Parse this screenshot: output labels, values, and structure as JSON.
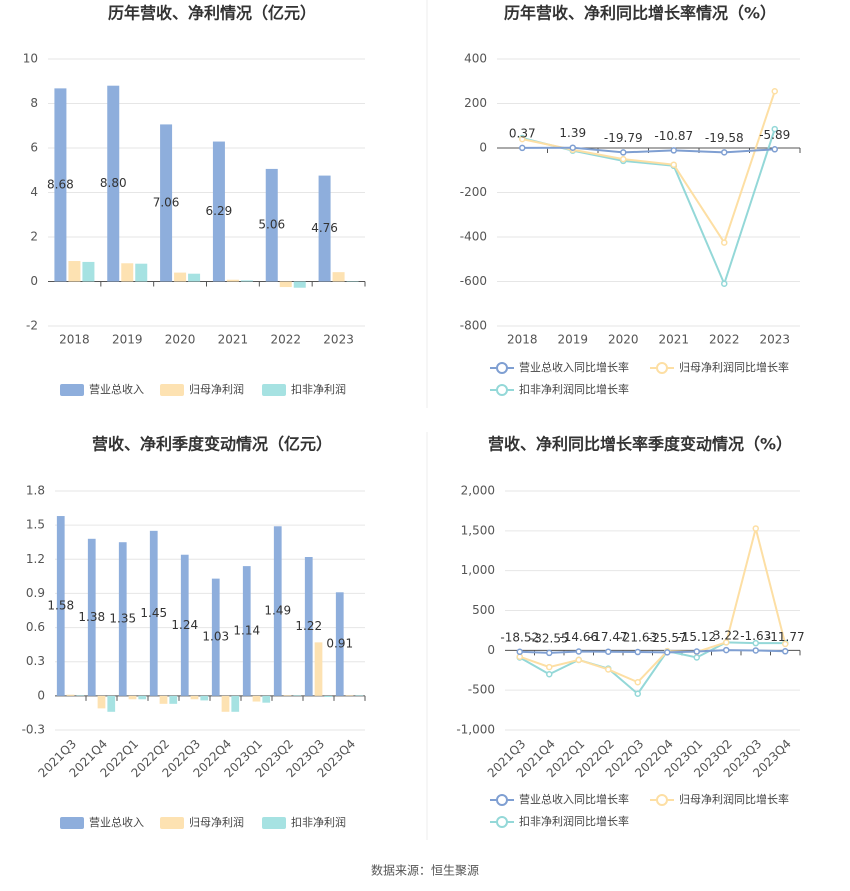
{
  "chart_data": [
    {
      "type": "bar",
      "title": "历年营收、净利情况（亿元）",
      "categories": [
        "2018",
        "2019",
        "2020",
        "2021",
        "2022",
        "2023"
      ],
      "series": [
        {
          "name": "营业总收入",
          "color": "#8eaedc",
          "values": [
            8.68,
            8.8,
            7.06,
            6.29,
            5.06,
            4.76
          ],
          "value_labels": [
            "8.68",
            "8.80",
            "7.06",
            "6.29",
            "5.06",
            "4.76"
          ]
        },
        {
          "name": "归母净利润",
          "color": "#fde2b2",
          "values": [
            0.92,
            0.82,
            0.4,
            0.08,
            -0.25,
            0.42
          ]
        },
        {
          "name": "扣非净利润",
          "color": "#a6e2e2",
          "values": [
            0.88,
            0.8,
            0.35,
            0.05,
            -0.28,
            0.02
          ]
        }
      ],
      "ylim": [
        -2,
        10
      ],
      "yticks": [
        -2,
        0,
        2,
        4,
        6,
        8,
        10
      ],
      "grid": true
    },
    {
      "type": "line",
      "title": "历年营收、净利同比增长率情况（%）",
      "categories": [
        "2018",
        "2019",
        "2020",
        "2021",
        "2022",
        "2023"
      ],
      "series": [
        {
          "name": "营业总收入同比增长率",
          "color": "#7f9fd2",
          "values": [
            0.37,
            1.39,
            -19.79,
            -10.87,
            -19.58,
            -5.89
          ]
        },
        {
          "name": "归母净利润同比增长率",
          "color": "#fddfa4",
          "values": [
            40,
            -8,
            -50,
            -75,
            -425,
            255
          ]
        },
        {
          "name": "扣非净利润同比增长率",
          "color": "#94d8d8",
          "values": [
            45,
            -12,
            -58,
            -80,
            -610,
            85
          ]
        }
      ],
      "ylim": [
        -800,
        400
      ],
      "yticks": [
        -800,
        -600,
        -400,
        -200,
        0,
        200,
        400
      ],
      "grid": true
    },
    {
      "type": "bar",
      "title": "营收、净利季度变动情况（亿元）",
      "categories": [
        "2021Q3",
        "2021Q4",
        "2022Q1",
        "2022Q2",
        "2022Q3",
        "2022Q4",
        "2023Q1",
        "2023Q2",
        "2023Q3",
        "2023Q4"
      ],
      "series": [
        {
          "name": "营业总收入",
          "color": "#8eaedc",
          "values": [
            1.58,
            1.38,
            1.35,
            1.45,
            1.24,
            1.03,
            1.14,
            1.49,
            1.22,
            0.91
          ]
        },
        {
          "name": "归母净利润",
          "color": "#fde2b2",
          "values": [
            0.01,
            -0.11,
            -0.03,
            -0.07,
            -0.03,
            -0.14,
            -0.05,
            0.005,
            0.47,
            0.005
          ]
        },
        {
          "name": "扣非净利润",
          "color": "#a6e2e2",
          "values": [
            0.005,
            -0.14,
            -0.03,
            -0.07,
            -0.04,
            -0.14,
            -0.06,
            0.005,
            -0.01,
            0.005
          ]
        }
      ],
      "ylim": [
        -0.3,
        1.8
      ],
      "yticks": [
        -0.3,
        0,
        0.3,
        0.6,
        0.9,
        1.2,
        1.5,
        1.8
      ],
      "grid": true
    },
    {
      "type": "line",
      "title": "营收、净利同比增长率季度变动情况（%）",
      "categories": [
        "2021Q3",
        "2021Q4",
        "2022Q1",
        "2022Q2",
        "2022Q3",
        "2022Q4",
        "2023Q1",
        "2023Q2",
        "2023Q3",
        "2023Q4"
      ],
      "series": [
        {
          "name": "营业总收入同比增长率",
          "color": "#7f9fd2",
          "values": [
            -18.52,
            -32.55,
            -14.66,
            -17.47,
            -21.63,
            -25.57,
            -15.12,
            3.22,
            -1.63,
            -11.77
          ]
        },
        {
          "name": "归母净利润同比增长率",
          "color": "#fddfa4",
          "values": [
            -80,
            -210,
            -120,
            -240,
            -400,
            -10,
            -20,
            100,
            1530,
            80
          ]
        },
        {
          "name": "扣非净利润同比增长率",
          "color": "#94d8d8",
          "values": [
            -90,
            -300,
            -120,
            -230,
            -545,
            -10,
            -90,
            100,
            90,
            90
          ]
        }
      ],
      "ylim": [
        -1000,
        2000
      ],
      "yticks": [
        {
          "value": -1000,
          "label": "-1,000"
        },
        -500,
        0,
        500,
        {
          "value": 1000,
          "label": "1,000"
        },
        {
          "value": 1500,
          "label": "1,500"
        },
        {
          "value": 2000,
          "label": "2,000"
        }
      ],
      "grid": true
    }
  ],
  "source": "数据来源：恒生聚源"
}
